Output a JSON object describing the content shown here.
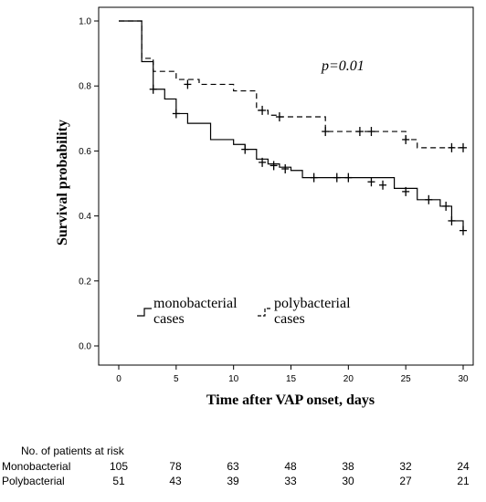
{
  "chart_data": {
    "type": "line",
    "step": true,
    "xlabel": "Time after VAP onset, days",
    "ylabel": "Survival probability",
    "xlim": [
      0,
      30
    ],
    "ylim": [
      0,
      1.0
    ],
    "xticks": [
      0,
      5,
      10,
      15,
      20,
      25,
      30
    ],
    "yticks": [
      "0.0",
      "0.2",
      "0.4",
      "0.6",
      "0.8",
      "1.0"
    ],
    "grid": false,
    "annotation": "p=0.01",
    "legend_position": "bottom-left",
    "series": [
      {
        "name": "monobacterial cases",
        "line_style": "solid",
        "steps": [
          [
            0,
            1.0
          ],
          [
            2,
            0.875
          ],
          [
            3,
            0.79
          ],
          [
            4,
            0.76
          ],
          [
            5,
            0.715
          ],
          [
            6,
            0.685
          ],
          [
            8,
            0.635
          ],
          [
            10,
            0.62
          ],
          [
            11,
            0.605
          ],
          [
            12,
            0.575
          ],
          [
            13,
            0.56
          ],
          [
            14,
            0.55
          ],
          [
            15,
            0.54
          ],
          [
            16,
            0.518
          ],
          [
            24,
            0.485
          ],
          [
            26,
            0.45
          ],
          [
            28,
            0.43
          ],
          [
            29,
            0.385
          ],
          [
            30,
            0.355
          ]
        ],
        "censored": [
          [
            3,
            0.79
          ],
          [
            5,
            0.715
          ],
          [
            11,
            0.605
          ],
          [
            12.5,
            0.565
          ],
          [
            13.5,
            0.555
          ],
          [
            14.5,
            0.545
          ],
          [
            17,
            0.518
          ],
          [
            19,
            0.518
          ],
          [
            20,
            0.518
          ],
          [
            22,
            0.505
          ],
          [
            23,
            0.495
          ],
          [
            25,
            0.475
          ],
          [
            27,
            0.45
          ],
          [
            28.5,
            0.43
          ],
          [
            29,
            0.385
          ],
          [
            30,
            0.355
          ]
        ]
      },
      {
        "name": "polybacterial cases",
        "line_style": "dashed",
        "steps": [
          [
            0,
            1.0
          ],
          [
            2,
            0.885
          ],
          [
            3,
            0.845
          ],
          [
            5,
            0.82
          ],
          [
            7,
            0.805
          ],
          [
            10,
            0.785
          ],
          [
            12,
            0.725
          ],
          [
            13,
            0.71
          ],
          [
            14,
            0.705
          ],
          [
            18,
            0.66
          ],
          [
            25,
            0.635
          ],
          [
            26,
            0.61
          ],
          [
            30,
            0.61
          ]
        ],
        "censored": [
          [
            6,
            0.805
          ],
          [
            12.5,
            0.725
          ],
          [
            14,
            0.705
          ],
          [
            18,
            0.66
          ],
          [
            21,
            0.66
          ],
          [
            22,
            0.66
          ],
          [
            25,
            0.635
          ],
          [
            29,
            0.61
          ],
          [
            30,
            0.61
          ]
        ]
      }
    ]
  },
  "risk_table": {
    "title": "No. of patients at risk",
    "times": [
      0,
      5,
      10,
      15,
      20,
      25,
      30
    ],
    "rows": [
      {
        "label": "Monobacterial",
        "values": [
          "105",
          "78",
          "63",
          "48",
          "38",
          "32",
          "24"
        ]
      },
      {
        "label": "Polybacterial",
        "values": [
          "51",
          "43",
          "39",
          "33",
          "30",
          "27",
          "21"
        ]
      }
    ]
  }
}
